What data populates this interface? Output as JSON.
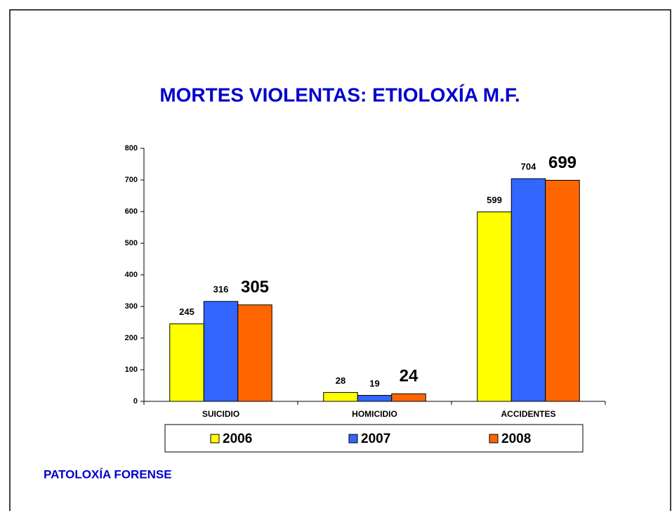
{
  "chart_data": {
    "type": "bar",
    "title": "MORTES VIOLENTAS: ETIOLOXÍA M.F.",
    "categories": [
      "SUICIDIO",
      "HOMICIDIO",
      "ACCIDENTES"
    ],
    "series": [
      {
        "name": "2006",
        "color": "#ffff00",
        "values": [
          245,
          28,
          599
        ]
      },
      {
        "name": "2007",
        "color": "#3366ff",
        "values": [
          316,
          19,
          704
        ]
      },
      {
        "name": "2008",
        "color": "#ff6600",
        "values": [
          305,
          24,
          699
        ]
      }
    ],
    "ylim": [
      0,
      800
    ],
    "yticks": [
      0,
      100,
      200,
      300,
      400,
      500,
      600,
      700,
      800
    ],
    "legend": "bottom",
    "footer": "PATOLOXÍA FORENSE"
  }
}
